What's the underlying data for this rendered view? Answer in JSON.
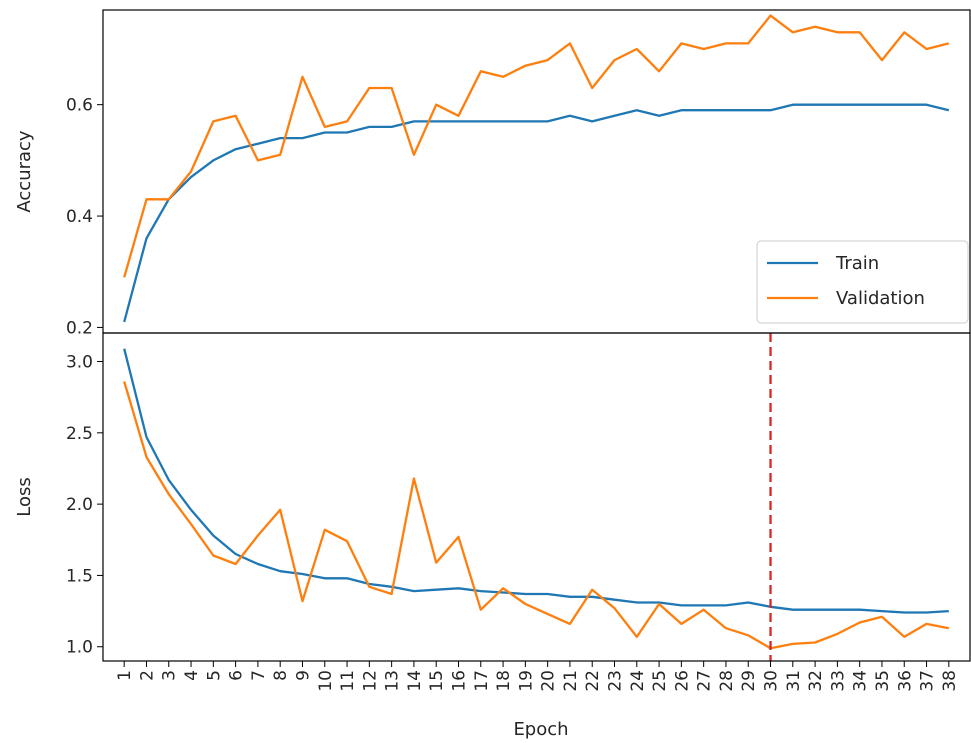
{
  "chart_data": {
    "type": "line",
    "xlabel": "Epoch",
    "x": [
      1,
      2,
      3,
      4,
      5,
      6,
      7,
      8,
      9,
      10,
      11,
      12,
      13,
      14,
      15,
      16,
      17,
      18,
      19,
      20,
      21,
      22,
      23,
      24,
      25,
      26,
      27,
      28,
      29,
      30,
      31,
      32,
      33,
      34,
      35,
      36,
      37,
      38
    ],
    "x_tick_labels": [
      "1",
      "2",
      "3",
      "4",
      "5",
      "6",
      "7",
      "8",
      "9",
      "10",
      "11",
      "12",
      "13",
      "14",
      "15",
      "16",
      "17",
      "18",
      "19",
      "20",
      "21",
      "22",
      "23",
      "24",
      "25",
      "26",
      "27",
      "28",
      "29",
      "30",
      "31",
      "32",
      "33",
      "34",
      "35",
      "36",
      "37",
      "38"
    ],
    "colors": {
      "train": "#1f77b4",
      "validation": "#ff7f0e",
      "marker": "#d62728"
    },
    "legend": {
      "placement": "lower-right",
      "entries": [
        "Train",
        "Validation"
      ]
    },
    "panels": [
      {
        "id": "accuracy",
        "ylabel": "Accuracy",
        "ylim": [
          0.19,
          0.77
        ],
        "yticks": [
          0.2,
          0.4,
          0.6
        ],
        "ytick_labels": [
          "0.2",
          "0.4",
          "0.6"
        ],
        "series": [
          {
            "name": "Train",
            "values": [
              0.21,
              0.36,
              0.43,
              0.47,
              0.5,
              0.52,
              0.53,
              0.54,
              0.54,
              0.55,
              0.55,
              0.56,
              0.56,
              0.57,
              0.57,
              0.57,
              0.57,
              0.57,
              0.57,
              0.57,
              0.58,
              0.57,
              0.58,
              0.59,
              0.58,
              0.59,
              0.59,
              0.59,
              0.59,
              0.59,
              0.6,
              0.6,
              0.6,
              0.6,
              0.6,
              0.6,
              0.6,
              0.59
            ]
          },
          {
            "name": "Validation",
            "values": [
              0.29,
              0.43,
              0.43,
              0.48,
              0.57,
              0.58,
              0.5,
              0.51,
              0.65,
              0.56,
              0.57,
              0.63,
              0.63,
              0.51,
              0.6,
              0.58,
              0.66,
              0.65,
              0.67,
              0.68,
              0.71,
              0.63,
              0.68,
              0.7,
              0.66,
              0.71,
              0.7,
              0.71,
              0.71,
              0.76,
              0.73,
              0.74,
              0.73,
              0.73,
              0.68,
              0.73,
              0.7,
              0.71
            ]
          }
        ]
      },
      {
        "id": "loss",
        "ylabel": "Loss",
        "ylim": [
          0.9,
          3.2
        ],
        "yticks": [
          1.0,
          1.5,
          2.0,
          2.5,
          3.0
        ],
        "ytick_labels": [
          "1.0",
          "1.5",
          "2.0",
          "2.5",
          "3.0"
        ],
        "vline_x": 30,
        "series": [
          {
            "name": "Train",
            "values": [
              3.09,
              2.47,
              2.17,
              1.96,
              1.78,
              1.65,
              1.58,
              1.53,
              1.51,
              1.48,
              1.48,
              1.44,
              1.42,
              1.39,
              1.4,
              1.41,
              1.39,
              1.38,
              1.37,
              1.37,
              1.35,
              1.35,
              1.33,
              1.31,
              1.31,
              1.29,
              1.29,
              1.29,
              1.31,
              1.28,
              1.26,
              1.26,
              1.26,
              1.26,
              1.25,
              1.24,
              1.24,
              1.25
            ]
          },
          {
            "name": "Validation",
            "values": [
              2.86,
              2.33,
              2.07,
              1.86,
              1.64,
              1.58,
              1.78,
              1.96,
              1.32,
              1.82,
              1.74,
              1.42,
              1.37,
              2.18,
              1.59,
              1.77,
              1.26,
              1.41,
              1.3,
              1.23,
              1.16,
              1.4,
              1.27,
              1.07,
              1.3,
              1.16,
              1.26,
              1.13,
              1.08,
              0.99,
              1.02,
              1.03,
              1.09,
              1.17,
              1.21,
              1.07,
              1.16,
              1.13
            ]
          }
        ]
      }
    ]
  }
}
